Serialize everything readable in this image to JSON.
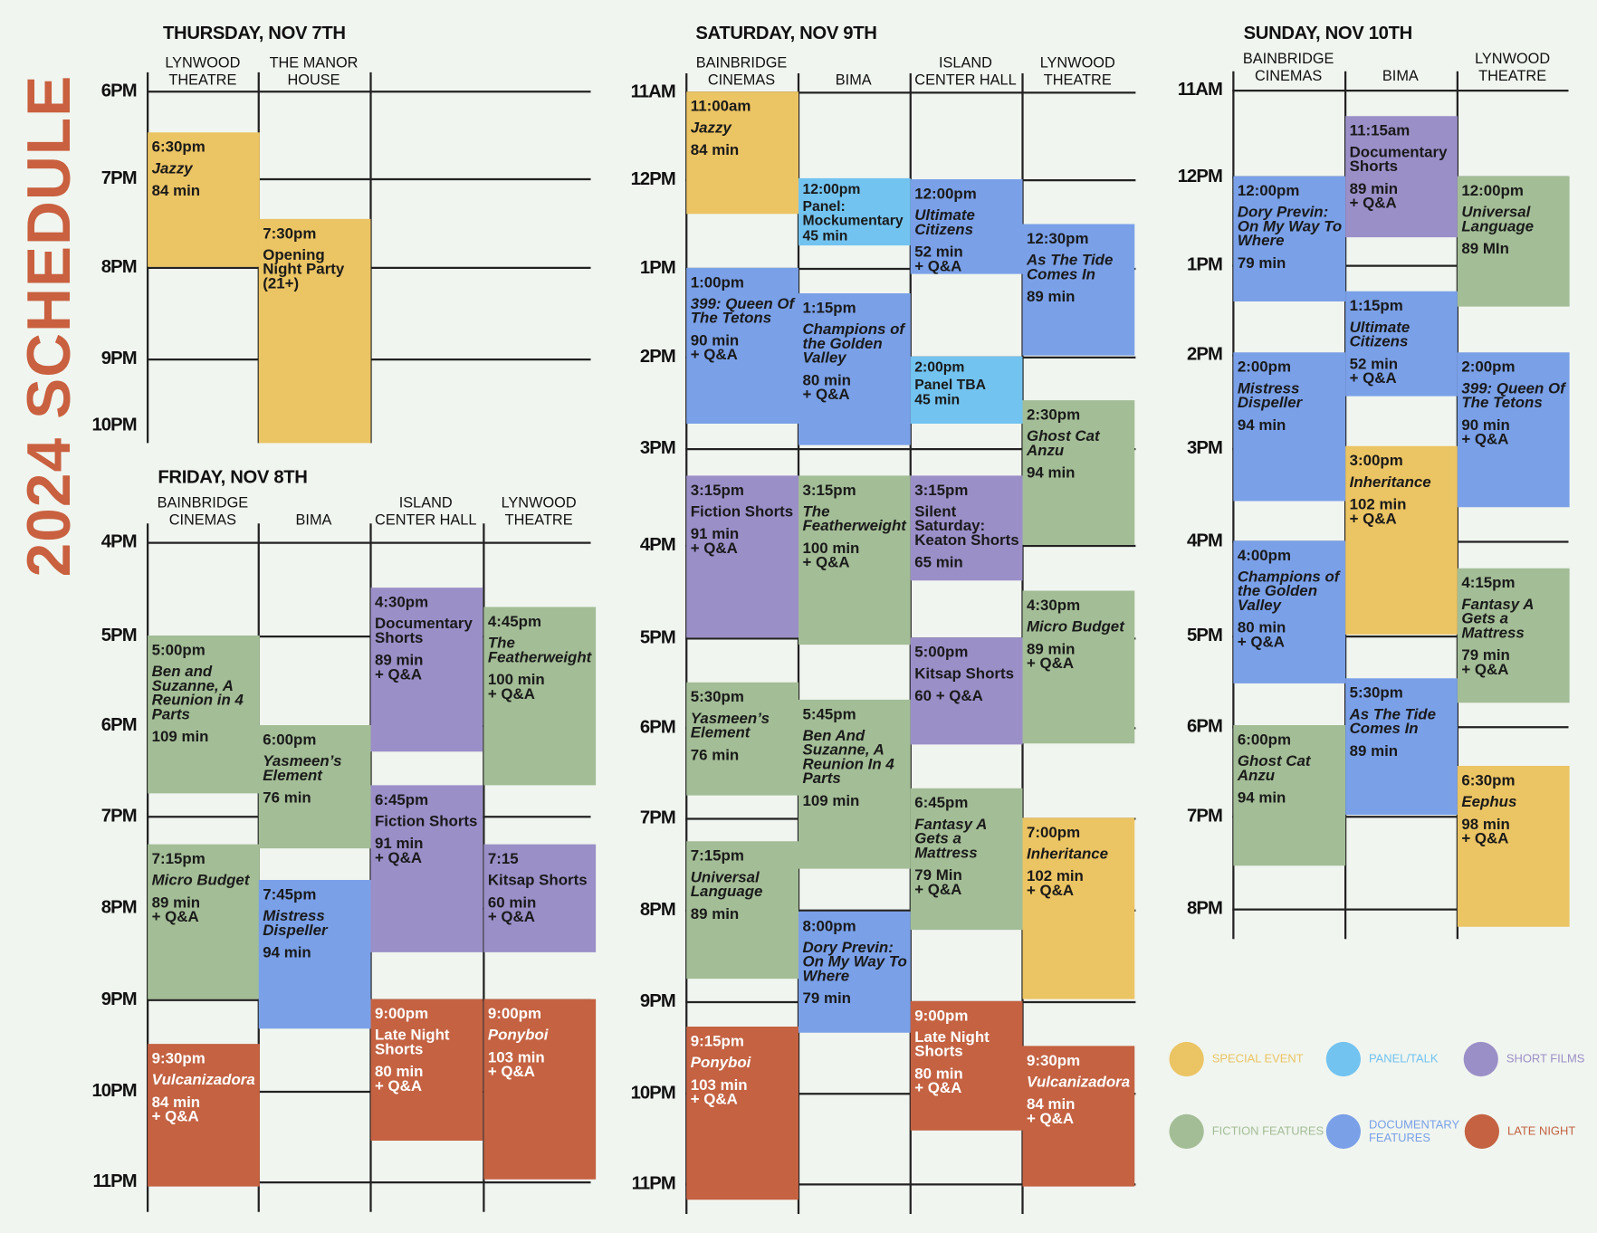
{
  "title": "2024 SCHEDULE",
  "legend": [
    {
      "label": "SPECIAL EVENT",
      "color": "#ebc463"
    },
    {
      "label": "PANEL/TALK",
      "color": "#72c3f0"
    },
    {
      "label": "SHORT FILMS",
      "color": "#9b8fc8"
    },
    {
      "label": "FICTION FEATURES",
      "color": "#a3bd96"
    },
    {
      "label": "DOCUMENTARY FEATURES",
      "color": "#7aa0e8"
    },
    {
      "label": "LATE NIGHT",
      "color": "#c46242"
    }
  ],
  "days": [
    {
      "title": "THURSDAY, NOV 7TH",
      "venues": [
        "LYNWOOD THEATRE",
        "THE MANOR HOUSE"
      ],
      "hours": [
        "6PM",
        "7PM",
        "8PM",
        "9PM",
        "10PM"
      ],
      "events": [
        {
          "time": "6:30pm",
          "title": "Jazzy",
          "details": [
            "84 min"
          ]
        },
        {
          "time": "7:30pm",
          "title": "Opening Night Party (21+)",
          "details": []
        }
      ]
    },
    {
      "title": "FRIDAY, NOV 8TH",
      "venues": [
        "BAINBRIDGE CINEMAS",
        "BIMA",
        "ISLAND CENTER HALL",
        "LYNWOOD THEATRE"
      ],
      "hours": [
        "4PM",
        "5PM",
        "6PM",
        "7PM",
        "8PM",
        "9PM",
        "10PM",
        "11PM"
      ],
      "events": [
        {
          "time": "5:00pm",
          "title": "Ben and Suzanne, A Reunion in 4 Parts",
          "details": [
            "109 min"
          ]
        },
        {
          "time": "7:15pm",
          "title": "Micro Budget",
          "details": [
            "89 min",
            "+ Q&A"
          ]
        },
        {
          "time": "9:30pm",
          "title": "Vulcanizadora",
          "details": [
            "84 min",
            "+ Q&A"
          ]
        },
        {
          "time": "6:00pm",
          "title": "Yasmeen’s Element",
          "details": [
            "76 min"
          ]
        },
        {
          "time": "7:45pm",
          "title": "Mistress Dispeller",
          "details": [
            "94 min"
          ]
        },
        {
          "time": "4:30pm",
          "title": "Documentary Shorts",
          "details": [
            "89 min",
            "+ Q&A"
          ]
        },
        {
          "time": "6:45pm",
          "title": "Fiction Shorts",
          "details": [
            "91 min",
            "+ Q&A"
          ]
        },
        {
          "time": "9:00pm",
          "title": "Late Night Shorts",
          "details": [
            "80 min",
            "+ Q&A"
          ]
        },
        {
          "time": "4:45pm",
          "title": "The Featherweight",
          "details": [
            "100 min",
            "+ Q&A"
          ]
        },
        {
          "time": "7:15",
          "title": "Kitsap Shorts",
          "details": [
            "60 min",
            "+ Q&A"
          ]
        },
        {
          "time": "9:00pm",
          "title": "Ponyboi",
          "details": [
            "103 min",
            "+ Q&A"
          ]
        }
      ]
    },
    {
      "title": "SATURDAY, NOV 9TH",
      "venues": [
        "BAINBRIDGE CINEMAS",
        "BIMA",
        "ISLAND CENTER HALL",
        "LYNWOOD THEATRE"
      ],
      "hours": [
        "11AM",
        "12PM",
        "1PM",
        "2PM",
        "3PM",
        "4PM",
        "5PM",
        "6PM",
        "7PM",
        "8PM",
        "9PM",
        "10PM",
        "11PM"
      ],
      "events": [
        {
          "time": "11:00am",
          "title": "Jazzy",
          "details": [
            "84 min"
          ]
        },
        {
          "time": "1:00pm",
          "title": "399: Queen Of The Tetons",
          "details": [
            "90 min",
            "+ Q&A"
          ]
        },
        {
          "time": "3:15pm",
          "title": "Fiction Shorts",
          "details": [
            "91 min",
            "+ Q&A"
          ]
        },
        {
          "time": "5:30pm",
          "title": "Yasmeen’s Element",
          "details": [
            "76 min"
          ]
        },
        {
          "time": "7:15pm",
          "title": "Universal Language",
          "details": [
            "89 min"
          ]
        },
        {
          "time": "9:15pm",
          "title": "Ponyboi",
          "details": [
            "103 min",
            "+ Q&A"
          ]
        },
        {
          "time": "12:00pm",
          "title": "Panel: Mockumentary",
          "details": [
            "45 min"
          ]
        },
        {
          "time": "1:15pm",
          "title": "Champions of the Golden Valley",
          "details": [
            "80 min",
            "+ Q&A"
          ]
        },
        {
          "time": "3:15pm",
          "title": "The Featherweight",
          "details": [
            "100 min",
            "+ Q&A"
          ]
        },
        {
          "time": "5:45pm",
          "title": "Ben And Suzanne, A Reunion In 4 Parts",
          "details": [
            "109 min"
          ]
        },
        {
          "time": "8:00pm",
          "title": "Dory Previn: On My Way To Where",
          "details": [
            "79 min"
          ]
        },
        {
          "time": "12:00pm",
          "title": "Ultimate Citizens",
          "details": [
            "52 min",
            "+ Q&A"
          ]
        },
        {
          "time": "2:00pm",
          "title": "Panel TBA",
          "details": [
            "45 min"
          ]
        },
        {
          "time": "3:15pm",
          "title": "Silent Saturday: Keaton Shorts",
          "details": [
            "65 min"
          ]
        },
        {
          "time": "5:00pm",
          "title": "Kitsap Shorts",
          "details": [
            "60 + Q&A"
          ]
        },
        {
          "time": "6:45pm",
          "title": "Fantasy A Gets a Mattress",
          "details": [
            "79 Min",
            "+ Q&A"
          ]
        },
        {
          "time": "9:00pm",
          "title": "Late Night Shorts",
          "details": [
            "80 min",
            "+ Q&A"
          ]
        },
        {
          "time": "12:30pm",
          "title": "As The Tide Comes In",
          "details": [
            "89 min"
          ]
        },
        {
          "time": "2:30pm",
          "title": "Ghost Cat Anzu",
          "details": [
            "94 min"
          ]
        },
        {
          "time": "4:30pm",
          "title": "Micro Budget",
          "details": [
            "89 min",
            "+ Q&A"
          ]
        },
        {
          "time": "7:00pm",
          "title": "Inheritance",
          "details": [
            "102 min",
            "+ Q&A"
          ]
        },
        {
          "time": "9:30pm",
          "title": "Vulcanizadora",
          "details": [
            "84 min",
            "+ Q&A"
          ]
        }
      ]
    },
    {
      "title": "SUNDAY, NOV 10TH",
      "venues": [
        "BAINBRIDGE CINEMAS",
        "BIMA",
        "LYNWOOD THEATRE"
      ],
      "hours": [
        "11AM",
        "12PM",
        "1PM",
        "2PM",
        "3PM",
        "4PM",
        "5PM",
        "6PM",
        "7PM",
        "8PM"
      ],
      "events": [
        {
          "time": "12:00pm",
          "title": "Dory Previn: On My Way To Where",
          "details": [
            "79 min"
          ]
        },
        {
          "time": "2:00pm",
          "title": "Mistress Dispeller",
          "details": [
            "94 min"
          ]
        },
        {
          "time": "4:00pm",
          "title": "Champions of the Golden Valley",
          "details": [
            "80 min",
            "+ Q&A"
          ]
        },
        {
          "time": "6:00pm",
          "title": "Ghost Cat Anzu",
          "details": [
            "94 min"
          ]
        },
        {
          "time": "11:15am",
          "title": "Documentary Shorts",
          "details": [
            "89 min",
            "+ Q&A"
          ]
        },
        {
          "time": "1:15pm",
          "title": "Ultimate Citizens",
          "details": [
            "52 min",
            "+ Q&A"
          ]
        },
        {
          "time": "3:00pm",
          "title": "Inheritance",
          "details": [
            "102 min",
            "+ Q&A"
          ]
        },
        {
          "time": "5:30pm",
          "title": "As The Tide Comes In",
          "details": [
            "89 min"
          ]
        },
        {
          "time": "12:00pm",
          "title": "Universal Language",
          "details": [
            "89 MIn"
          ]
        },
        {
          "time": "2:00pm",
          "title": "399: Queen Of The Tetons",
          "details": [
            "90 min",
            "+ Q&A"
          ]
        },
        {
          "time": "4:15pm",
          "title": "Fantasy A Gets a Mattress",
          "details": [
            "79 min",
            "+ Q&A"
          ]
        },
        {
          "time": "6:30pm",
          "title": "Eephus",
          "details": [
            "98 min",
            "+ Q&A"
          ]
        }
      ]
    }
  ]
}
